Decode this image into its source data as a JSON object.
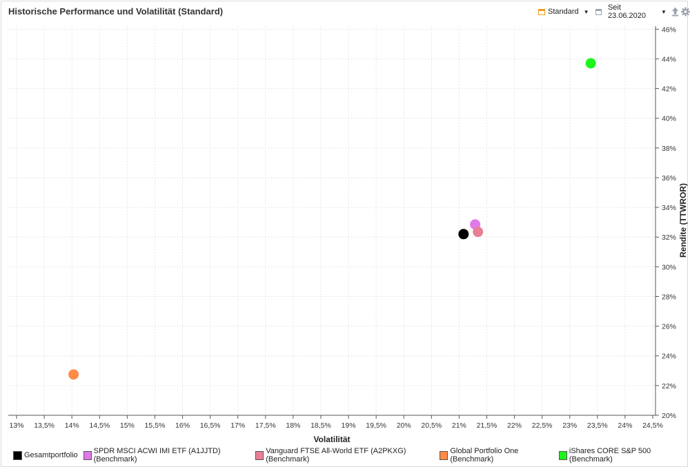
{
  "header": {
    "title": "Historische Performance und Volatilität (Standard)",
    "profile_label": "Standard",
    "date_label": "Seit 23.06.2020",
    "icons": [
      "calendar-icon",
      "dropdown-caret-icon",
      "date-range-icon",
      "export-icon",
      "settings-gear-icon"
    ]
  },
  "chart_data": {
    "type": "scatter",
    "title": "Historische Performance und Volatilität (Standard)",
    "xlabel": "Volatilität",
    "ylabel": "Rendite (TTWROR)",
    "xlim": [
      12.85,
      24.55
    ],
    "ylim": [
      20,
      46.2
    ],
    "x_ticks": [
      13,
      13.5,
      14,
      14.5,
      15,
      15.5,
      16,
      16.5,
      17,
      17.5,
      18,
      18.5,
      19,
      19.5,
      20,
      20.5,
      21,
      21.5,
      22,
      22.5,
      23,
      23.5,
      24,
      24.5
    ],
    "x_tick_labels": [
      "13%",
      "13,5%",
      "14%",
      "14,5%",
      "15%",
      "15,5%",
      "16%",
      "16,5%",
      "17%",
      "17,5%",
      "18%",
      "18,5%",
      "19%",
      "19,5%",
      "20%",
      "20,5%",
      "21%",
      "21,5%",
      "22%",
      "22,5%",
      "23%",
      "23,5%",
      "24%",
      "24,5%"
    ],
    "y_ticks": [
      20,
      22,
      24,
      26,
      28,
      30,
      32,
      34,
      36,
      38,
      40,
      42,
      44,
      46
    ],
    "y_tick_labels": [
      "20%",
      "22%",
      "24%",
      "26%",
      "28%",
      "30%",
      "32%",
      "34%",
      "36%",
      "38%",
      "40%",
      "42%",
      "44%",
      "46%"
    ],
    "grid": true,
    "legend_position": "bottom",
    "series": [
      {
        "name": "Gesamtportfolio",
        "color": "#000000",
        "x": 21.08,
        "y": 32.2
      },
      {
        "name": "SPDR MSCI ACWI IMI ETF (A1JJTD) (Benchmark)",
        "color": "#e079e8",
        "x": 21.29,
        "y": 32.85
      },
      {
        "name": "Vanguard FTSE All-World ETF (A2PKXG) (Benchmark)",
        "color": "#e87f94",
        "x": 21.34,
        "y": 32.35
      },
      {
        "name": "Global Portfolio One (Benchmark)",
        "color": "#ff8b47",
        "x": 14.03,
        "y": 22.75
      },
      {
        "name": "iShares CORE S&P 500 (Benchmark)",
        "color": "#1df51d",
        "x": 23.38,
        "y": 43.7
      }
    ]
  }
}
